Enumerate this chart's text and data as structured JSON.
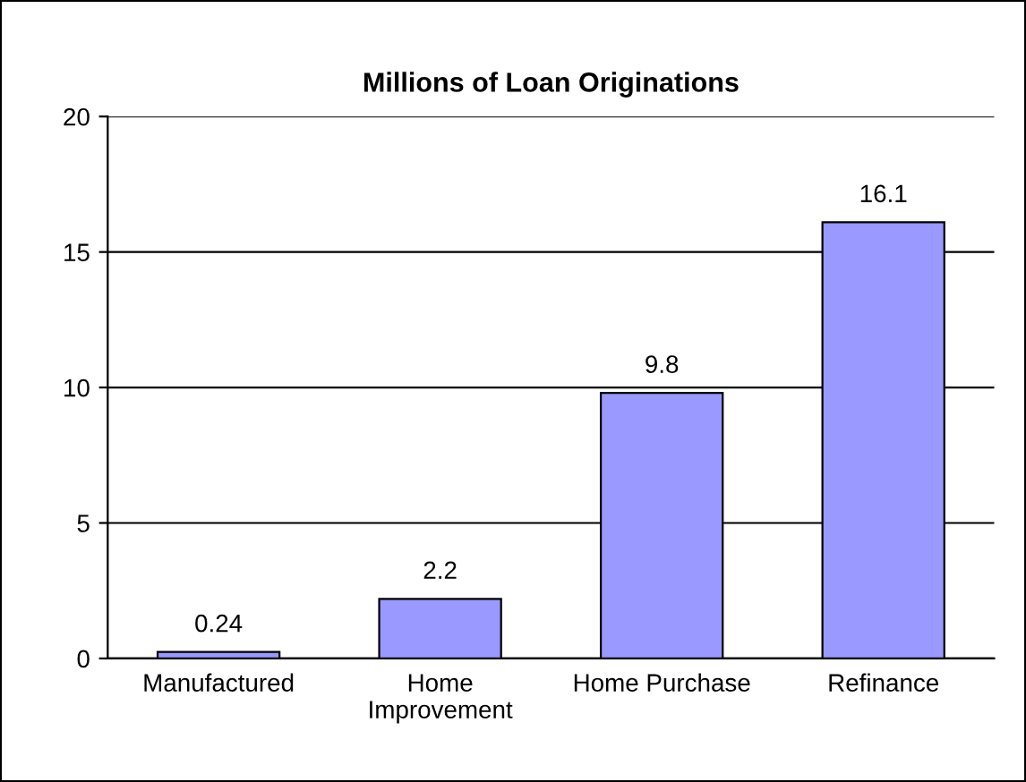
{
  "chart_data": {
    "type": "bar",
    "title": "Millions of Loan Originations",
    "categories": [
      "Manufactured",
      "Home\nImprovement",
      "Home Purchase",
      "Refinance"
    ],
    "values": [
      0.24,
      2.2,
      9.8,
      16.1
    ],
    "color": "#9999ff",
    "ylim": [
      0,
      20
    ],
    "yticks": [
      0,
      5,
      10,
      15,
      20
    ],
    "grid": "y",
    "data_labels": true
  }
}
